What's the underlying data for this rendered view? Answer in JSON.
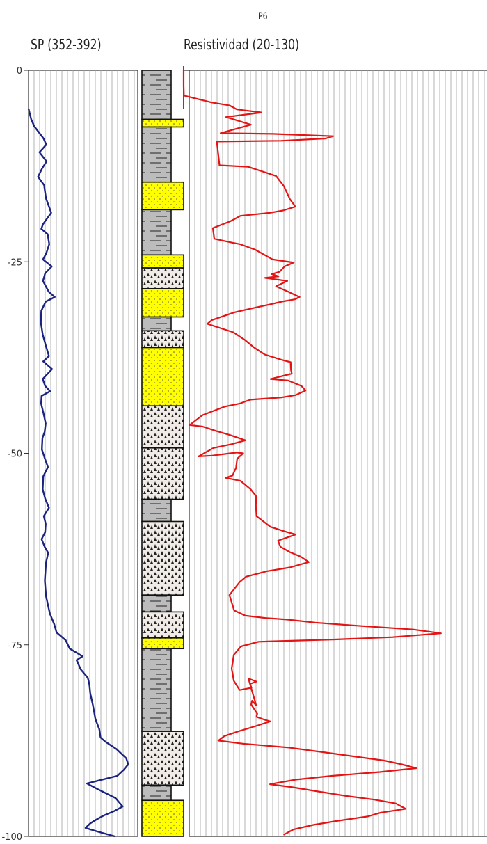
{
  "well_name": "P6",
  "sp_label": "SP (352-392)",
  "res_label": "Resistividad (20-130)",
  "colors": {
    "sp": "#1a237e",
    "resistivity": "#e41414",
    "grid": "#a0a0a0",
    "shale": "#bcbcbc",
    "sand": "#ffff00",
    "gravel": "#f0ebe6"
  },
  "chart_data": [
    {
      "type": "line",
      "title": "SP (352-392)",
      "xlim": [
        352,
        392
      ],
      "ylim": [
        0,
        -100
      ],
      "yticks": [
        0,
        -25,
        -50,
        -75,
        -100
      ],
      "ytick_labels": [
        "0",
        "-25",
        "-50",
        "-75",
        "-100"
      ],
      "grid": true,
      "series": [
        {
          "name": "SP (352-392)",
          "points": [
            [
              352.0,
              -5.0
            ],
            [
              353.0,
              -6.4
            ],
            [
              354.1,
              -7.3
            ],
            [
              355.6,
              -8.0
            ],
            [
              357.5,
              -8.9
            ],
            [
              358.5,
              -9.7
            ],
            [
              356.0,
              -10.7
            ],
            [
              358.6,
              -11.9
            ],
            [
              357.0,
              -12.8
            ],
            [
              355.5,
              -13.9
            ],
            [
              357.7,
              -15.0
            ],
            [
              358.4,
              -16.7
            ],
            [
              360.3,
              -18.6
            ],
            [
              357.3,
              -20.1
            ],
            [
              356.7,
              -20.7
            ],
            [
              359.0,
              -21.4
            ],
            [
              359.6,
              -22.7
            ],
            [
              358.5,
              -23.9
            ],
            [
              357.3,
              -24.7
            ],
            [
              360.5,
              -25.6
            ],
            [
              358.1,
              -26.5
            ],
            [
              357.3,
              -27.5
            ],
            [
              359.4,
              -28.9
            ],
            [
              361.6,
              -29.6
            ],
            [
              358.3,
              -30.2
            ],
            [
              356.7,
              -31.4
            ],
            [
              356.5,
              -32.9
            ],
            [
              357.2,
              -34.5
            ],
            [
              358.4,
              -36.0
            ],
            [
              359.5,
              -37.3
            ],
            [
              357.4,
              -38.0
            ],
            [
              360.6,
              -39.0
            ],
            [
              357.2,
              -40.3
            ],
            [
              358.1,
              -41.2
            ],
            [
              359.9,
              -41.9
            ],
            [
              356.8,
              -42.5
            ],
            [
              356.6,
              -43.5
            ],
            [
              357.5,
              -44.8
            ],
            [
              358.3,
              -46.1
            ],
            [
              357.9,
              -47.2
            ],
            [
              357.1,
              -48.0
            ],
            [
              356.9,
              -49.5
            ],
            [
              357.9,
              -50.6
            ],
            [
              359.1,
              -51.8
            ],
            [
              357.4,
              -53.0
            ],
            [
              357.2,
              -54.7
            ],
            [
              358.1,
              -55.9
            ],
            [
              359.5,
              -57.1
            ],
            [
              357.6,
              -58.2
            ],
            [
              358.3,
              -59.2
            ],
            [
              358.1,
              -60.3
            ],
            [
              356.8,
              -61.2
            ],
            [
              357.9,
              -62.2
            ],
            [
              359.2,
              -63.0
            ],
            [
              358.4,
              -64.3
            ],
            [
              358.0,
              -66.6
            ],
            [
              358.4,
              -68.6
            ],
            [
              359.8,
              -70.9
            ],
            [
              361.4,
              -72.3
            ],
            [
              362.3,
              -73.4
            ],
            [
              365.6,
              -74.4
            ],
            [
              367.1,
              -75.5
            ],
            [
              369.5,
              -76.0
            ],
            [
              371.8,
              -76.5
            ],
            [
              369.6,
              -77.0
            ],
            [
              371.1,
              -78.2
            ],
            [
              373.7,
              -79.3
            ],
            [
              374.3,
              -80.2
            ],
            [
              374.6,
              -81.3
            ],
            [
              375.6,
              -82.9
            ],
            [
              376.5,
              -84.7
            ],
            [
              377.9,
              -86.0
            ],
            [
              378.4,
              -87.1
            ],
            [
              380.0,
              -87.6
            ],
            [
              382.1,
              -88.1
            ],
            [
              384.2,
              -88.6
            ],
            [
              386.0,
              -89.2
            ],
            [
              387.8,
              -89.8
            ],
            [
              388.5,
              -90.6
            ],
            [
              386.9,
              -91.3
            ],
            [
              384.5,
              -92.1
            ],
            [
              373.4,
              -93.1
            ],
            [
              377.1,
              -93.8
            ],
            [
              383.9,
              -95.0
            ],
            [
              386.5,
              -96.1
            ],
            [
              383.4,
              -96.7
            ],
            [
              379.4,
              -97.3
            ],
            [
              376.9,
              -97.8
            ],
            [
              374.6,
              -98.3
            ],
            [
              372.9,
              -98.9
            ],
            [
              377.5,
              -99.4
            ],
            [
              383.6,
              -100.0
            ]
          ]
        }
      ]
    },
    {
      "type": "line",
      "title": "Resistividad (20-130)",
      "xlim": [
        20,
        130
      ],
      "ylim": [
        0,
        -100
      ],
      "grid": true,
      "series": [
        {
          "name": "Resistividad (20-130)",
          "points": [
            [
              20.0,
              0.0
            ],
            [
              20.0,
              -2.0
            ],
            [
              20.1,
              -3.3
            ],
            [
              30.1,
              -4.2
            ],
            [
              36.7,
              -4.6
            ],
            [
              39.3,
              -5.1
            ],
            [
              48.2,
              -5.5
            ],
            [
              35.4,
              -6.1
            ],
            [
              44.4,
              -7.1
            ],
            [
              33.4,
              -8.2
            ],
            [
              52.3,
              -8.3
            ],
            [
              74.2,
              -8.6
            ],
            [
              71.5,
              -8.9
            ],
            [
              55.3,
              -9.2
            ],
            [
              32.0,
              -9.3
            ],
            [
              32.6,
              -11.1
            ],
            [
              33.0,
              -12.4
            ],
            [
              43.4,
              -12.6
            ],
            [
              53.5,
              -13.8
            ],
            [
              56.3,
              -15.1
            ],
            [
              58.5,
              -16.8
            ],
            [
              60.5,
              -17.8
            ],
            [
              56.0,
              -18.3
            ],
            [
              51.3,
              -18.6
            ],
            [
              40.6,
              -19.0
            ],
            [
              37.0,
              -19.7
            ],
            [
              30.6,
              -20.6
            ],
            [
              31.1,
              -22.0
            ],
            [
              37.5,
              -22.5
            ],
            [
              40.4,
              -22.7
            ],
            [
              45.8,
              -23.4
            ],
            [
              52.3,
              -24.7
            ],
            [
              59.9,
              -25.1
            ],
            [
              56.6,
              -25.6
            ],
            [
              54.8,
              -26.3
            ],
            [
              52.0,
              -26.6
            ],
            [
              54.4,
              -26.9
            ],
            [
              49.5,
              -27.1
            ],
            [
              57.6,
              -27.5
            ],
            [
              53.5,
              -28.2
            ],
            [
              57.9,
              -28.9
            ],
            [
              62.0,
              -29.6
            ],
            [
              60.3,
              -29.9
            ],
            [
              55.6,
              -30.2
            ],
            [
              50.8,
              -30.6
            ],
            [
              45.7,
              -31.0
            ],
            [
              38.4,
              -31.6
            ],
            [
              30.3,
              -32.6
            ],
            [
              28.6,
              -33.1
            ],
            [
              38.0,
              -34.2
            ],
            [
              42.2,
              -35.2
            ],
            [
              45.6,
              -36.2
            ],
            [
              49.4,
              -37.1
            ],
            [
              55.6,
              -37.8
            ],
            [
              58.8,
              -38.1
            ],
            [
              58.9,
              -39.1
            ],
            [
              59.2,
              -39.6
            ],
            [
              51.5,
              -40.3
            ],
            [
              57.9,
              -40.5
            ],
            [
              62.7,
              -41.2
            ],
            [
              64.2,
              -41.8
            ],
            [
              60.6,
              -42.4
            ],
            [
              55.6,
              -42.7
            ],
            [
              44.2,
              -43.0
            ],
            [
              40.4,
              -43.5
            ],
            [
              34.9,
              -43.9
            ],
            [
              26.9,
              -45.0
            ],
            [
              22.2,
              -46.3
            ],
            [
              26.9,
              -46.5
            ],
            [
              31.9,
              -47.1
            ],
            [
              36.7,
              -47.6
            ],
            [
              42.4,
              -48.3
            ],
            [
              37.4,
              -48.8
            ],
            [
              30.8,
              -49.3
            ],
            [
              25.4,
              -50.4
            ],
            [
              30.3,
              -50.3
            ],
            [
              36.9,
              -50.0
            ],
            [
              39.3,
              -49.9
            ],
            [
              41.6,
              -50.0
            ],
            [
              39.4,
              -50.7
            ],
            [
              39.0,
              -51.9
            ],
            [
              37.7,
              -52.9
            ],
            [
              35.2,
              -53.2
            ],
            [
              40.6,
              -53.6
            ],
            [
              44.3,
              -54.7
            ],
            [
              46.3,
              -55.6
            ],
            [
              46.2,
              -56.8
            ],
            [
              46.4,
              -58.2
            ],
            [
              51.5,
              -59.6
            ],
            [
              56.7,
              -60.2
            ],
            [
              60.6,
              -60.6
            ],
            [
              54.2,
              -61.4
            ],
            [
              55.1,
              -62.2
            ],
            [
              58.5,
              -62.9
            ],
            [
              62.5,
              -63.5
            ],
            [
              65.4,
              -64.2
            ],
            [
              58.5,
              -64.9
            ],
            [
              50.0,
              -65.4
            ],
            [
              42.6,
              -66.1
            ],
            [
              40.3,
              -66.8
            ],
            [
              36.6,
              -68.5
            ],
            [
              38.3,
              -70.5
            ],
            [
              42.4,
              -71.2
            ],
            [
              49.7,
              -71.5
            ],
            [
              57.5,
              -71.7
            ],
            [
              67.7,
              -72.1
            ],
            [
              82.6,
              -72.5
            ],
            [
              103.2,
              -73.0
            ],
            [
              113.3,
              -73.5
            ],
            [
              95.8,
              -74.0
            ],
            [
              74.9,
              -74.3
            ],
            [
              47.2,
              -74.6
            ],
            [
              40.8,
              -75.2
            ],
            [
              38.2,
              -76.3
            ],
            [
              37.4,
              -78.1
            ],
            [
              38.2,
              -79.7
            ],
            [
              40.3,
              -80.9
            ],
            [
              44.6,
              -80.6
            ],
            [
              44.1,
              -80.1
            ],
            [
              46.4,
              -79.8
            ],
            [
              43.5,
              -79.4
            ],
            [
              44.3,
              -80.4
            ],
            [
              46.3,
              -82.9
            ],
            [
              44.8,
              -82.3
            ],
            [
              44.5,
              -82.8
            ],
            [
              46.7,
              -84.0
            ],
            [
              46.4,
              -84.4
            ],
            [
              49.5,
              -84.8
            ],
            [
              51.4,
              -85.0
            ],
            [
              46.2,
              -85.6
            ],
            [
              39.8,
              -86.3
            ],
            [
              34.8,
              -86.9
            ],
            [
              32.6,
              -87.5
            ],
            [
              41.5,
              -87.9
            ],
            [
              58.0,
              -88.4
            ],
            [
              70.3,
              -89.0
            ],
            [
              82.5,
              -89.6
            ],
            [
              92.7,
              -90.1
            ],
            [
              99.1,
              -90.6
            ],
            [
              104.3,
              -91.1
            ],
            [
              91.1,
              -91.6
            ],
            [
              73.8,
              -92.1
            ],
            [
              60.6,
              -92.6
            ],
            [
              51.3,
              -93.2
            ],
            [
              59.6,
              -93.6
            ],
            [
              68.0,
              -94.1
            ],
            [
              78.4,
              -94.7
            ],
            [
              89.1,
              -95.2
            ],
            [
              96.9,
              -95.7
            ],
            [
              100.5,
              -96.4
            ],
            [
              91.4,
              -96.9
            ],
            [
              86.7,
              -97.4
            ],
            [
              75.3,
              -98.0
            ],
            [
              67.0,
              -98.5
            ],
            [
              59.8,
              -99.1
            ],
            [
              56.2,
              -99.8
            ]
          ]
        }
      ]
    }
  ],
  "lithology": [
    [
      0.0,
      6.4,
      "shale"
    ],
    [
      6.4,
      7.4,
      "sand"
    ],
    [
      7.4,
      14.6,
      "shale"
    ],
    [
      14.6,
      18.2,
      "sand"
    ],
    [
      18.2,
      24.1,
      "shale"
    ],
    [
      24.1,
      25.8,
      "sand"
    ],
    [
      25.8,
      28.5,
      "gravel"
    ],
    [
      28.5,
      32.2,
      "sand"
    ],
    [
      32.2,
      34.0,
      "shale"
    ],
    [
      34.0,
      36.2,
      "gravel"
    ],
    [
      36.2,
      43.8,
      "sand"
    ],
    [
      43.8,
      49.3,
      "gravel"
    ],
    [
      49.3,
      56.0,
      "gravel"
    ],
    [
      56.0,
      58.9,
      "shale"
    ],
    [
      58.9,
      68.5,
      "gravel"
    ],
    [
      68.5,
      70.7,
      "shale"
    ],
    [
      70.7,
      74.1,
      "gravel"
    ],
    [
      74.1,
      75.5,
      "sand"
    ],
    [
      75.5,
      86.3,
      "shale"
    ],
    [
      86.3,
      93.3,
      "gravel"
    ],
    [
      93.3,
      95.3,
      "shale"
    ],
    [
      95.3,
      100.0,
      "sand"
    ]
  ]
}
